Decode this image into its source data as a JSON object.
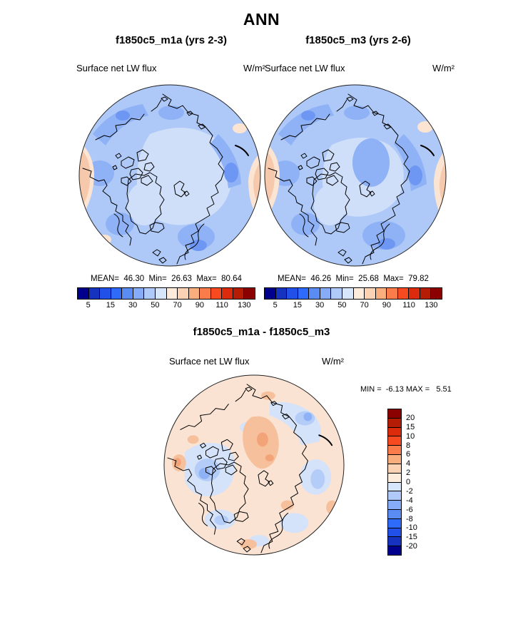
{
  "figure": {
    "title": "ANN"
  },
  "panels": [
    {
      "title": "f1850c5_m1a (yrs 2-3)",
      "variable": "Surface net LW flux",
      "units": "W/m²",
      "stats_text": "MEAN=  46.30  Min=  26.63  Max=  80.64"
    },
    {
      "title": "f1850c5_m3 (yrs 2-6)",
      "variable": "Surface net LW flux",
      "units": "W/m²",
      "stats_text": "MEAN=  46.26  Min=  25.68  Max=  79.82"
    },
    {
      "title": "f1850c5_m1a - f1850c5_m3",
      "variable": "Surface net LW flux",
      "units": "W/m²",
      "stats_text": "MIN =  -6.13 MAX =   5.51"
    }
  ],
  "chart_data": [
    {
      "type": "heatmap",
      "subtype": "filled-contour-polar-stereographic-map",
      "region": "Arctic (north polar cap)",
      "season": "ANN",
      "title": "f1850c5_m1a (yrs 2-3)",
      "variable": "Surface net LW flux",
      "units": "W/m^2",
      "stats": {
        "mean": 46.3,
        "min": 26.63,
        "max": 80.64
      },
      "colorbar": {
        "orientation": "horizontal",
        "levels": [
          5,
          10,
          15,
          20,
          30,
          40,
          50,
          60,
          70,
          80,
          90,
          100,
          110,
          120,
          130
        ],
        "labeled_levels": [
          5,
          15,
          30,
          50,
          70,
          90,
          110,
          130
        ],
        "colors": [
          "#00008C",
          "#1533BE",
          "#2050E8",
          "#2F6BFA",
          "#5A8CF4",
          "#86ACF7",
          "#AFC9F9",
          "#D8E6FB",
          "#FDEBDC",
          "#FBD3B4",
          "#F9AE7E",
          "#FA7C4A",
          "#F74A20",
          "#DC2A0D",
          "#B51C06",
          "#8B0000"
        ]
      }
    },
    {
      "type": "heatmap",
      "subtype": "filled-contour-polar-stereographic-map",
      "region": "Arctic (north polar cap)",
      "season": "ANN",
      "title": "f1850c5_m3 (yrs 2-6)",
      "variable": "Surface net LW flux",
      "units": "W/m^2",
      "stats": {
        "mean": 46.26,
        "min": 25.68,
        "max": 79.82
      },
      "colorbar": {
        "orientation": "horizontal",
        "levels": [
          5,
          10,
          15,
          20,
          30,
          40,
          50,
          60,
          70,
          80,
          90,
          100,
          110,
          120,
          130
        ],
        "labeled_levels": [
          5,
          15,
          30,
          50,
          70,
          90,
          110,
          130
        ],
        "colors": [
          "#00008C",
          "#1533BE",
          "#2050E8",
          "#2F6BFA",
          "#5A8CF4",
          "#86ACF7",
          "#AFC9F9",
          "#D8E6FB",
          "#FDEBDC",
          "#FBD3B4",
          "#F9AE7E",
          "#FA7C4A",
          "#F74A20",
          "#DC2A0D",
          "#B51C06",
          "#8B0000"
        ]
      }
    },
    {
      "type": "heatmap",
      "subtype": "filled-contour-polar-stereographic-map-difference",
      "region": "Arctic (north polar cap)",
      "season": "ANN",
      "title": "f1850c5_m1a - f1850c5_m3",
      "variable": "Surface net LW flux",
      "units": "W/m^2",
      "stats": {
        "min": -6.13,
        "max": 5.51
      },
      "colorbar": {
        "orientation": "vertical",
        "levels": [
          20,
          15,
          10,
          8,
          6,
          4,
          2,
          0,
          -2,
          -4,
          -6,
          -8,
          -10,
          -15,
          -20
        ],
        "labeled_levels": [
          20,
          15,
          10,
          8,
          6,
          4,
          2,
          0,
          -2,
          -4,
          -6,
          -8,
          -10,
          -15,
          -20
        ],
        "colors": [
          "#8B0000",
          "#B51C06",
          "#DC2A0D",
          "#F74A20",
          "#FA7C4A",
          "#F9AE7E",
          "#FBD3B4",
          "#FDEBDC",
          "#D8E6FB",
          "#AFC9F9",
          "#86ACF7",
          "#5A8CF4",
          "#2F6BFA",
          "#2050E8",
          "#1533BE",
          "#00008C"
        ]
      }
    }
  ]
}
